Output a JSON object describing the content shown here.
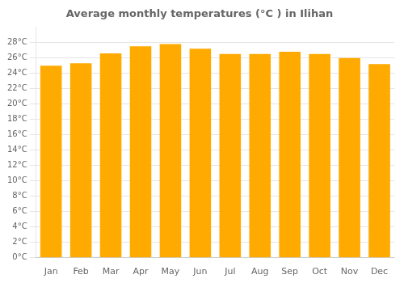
{
  "chart_data": {
    "type": "bar",
    "title": "Average monthly temperatures (°C ) in Ilihan",
    "categories": [
      "Jan",
      "Feb",
      "Mar",
      "Apr",
      "May",
      "Jun",
      "Jul",
      "Aug",
      "Sep",
      "Oct",
      "Nov",
      "Dec"
    ],
    "values": [
      25.0,
      25.3,
      26.6,
      27.5,
      27.8,
      27.2,
      26.5,
      26.5,
      26.8,
      26.5,
      26.0,
      25.2
    ],
    "color": "#FFAA00",
    "ylim": [
      0,
      30
    ],
    "yticks": [
      {
        "value": 0,
        "label": "0°C"
      },
      {
        "value": 2,
        "label": "2°C"
      },
      {
        "value": 4,
        "label": "4°C"
      },
      {
        "value": 6,
        "label": "6°C"
      },
      {
        "value": 8,
        "label": "8°C"
      },
      {
        "value": 10,
        "label": "10°C"
      },
      {
        "value": 12,
        "label": "12°C"
      },
      {
        "value": 14,
        "label": "14°C"
      },
      {
        "value": 16,
        "label": "16°C"
      },
      {
        "value": 18,
        "label": "18°C"
      },
      {
        "value": 20,
        "label": "20°C"
      },
      {
        "value": 22,
        "label": "22°C"
      },
      {
        "value": 24,
        "label": "24°C"
      },
      {
        "value": 26,
        "label": "26°C"
      },
      {
        "value": 28,
        "label": "28°C"
      }
    ],
    "grid": true
  }
}
